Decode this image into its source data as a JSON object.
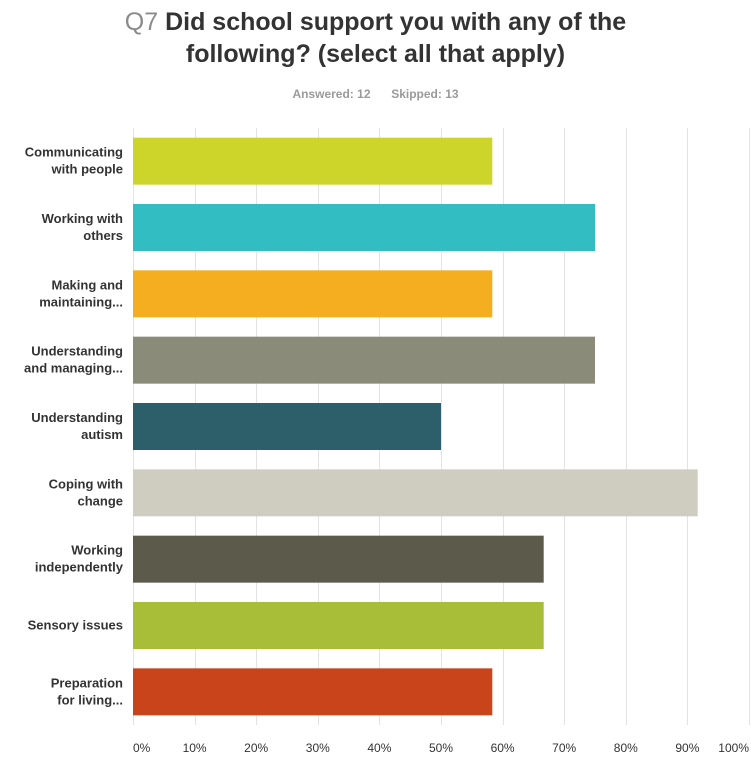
{
  "header": {
    "question_number": "Q7",
    "title_line1": "Did school support you with any of the",
    "title_line2": "following? (select all that apply)",
    "answered_label": "Answered:",
    "answered_value": "12",
    "skipped_label": "Skipped:",
    "skipped_value": "13"
  },
  "chart_data": {
    "type": "bar",
    "orientation": "horizontal",
    "title": "Q7 Did school support you with any of the following? (select all that apply)",
    "categories": [
      [
        "Communicating",
        "with people"
      ],
      [
        "Working with",
        "others"
      ],
      [
        "Making and",
        "maintaining..."
      ],
      [
        "Understanding",
        "and managing..."
      ],
      [
        "Understanding",
        "autism"
      ],
      [
        "Coping with",
        "change"
      ],
      [
        "Working",
        "independently"
      ],
      [
        "Sensory issues"
      ],
      [
        "Preparation",
        "for living..."
      ]
    ],
    "values": [
      58.33,
      75.0,
      58.33,
      75.0,
      50.0,
      91.67,
      66.67,
      66.67,
      58.33
    ],
    "colors": [
      "#cdd42a",
      "#31bdc1",
      "#f5ae20",
      "#8b8b7a",
      "#2d5f6b",
      "#cfcdbf",
      "#5c5a4b",
      "#a8bd38",
      "#c9441b"
    ],
    "xlim": [
      0,
      100
    ],
    "x_ticks": [
      "0%",
      "10%",
      "20%",
      "30%",
      "40%",
      "50%",
      "60%",
      "70%",
      "80%",
      "90%",
      "100%"
    ],
    "grid": true,
    "xlabel": "",
    "ylabel": ""
  }
}
